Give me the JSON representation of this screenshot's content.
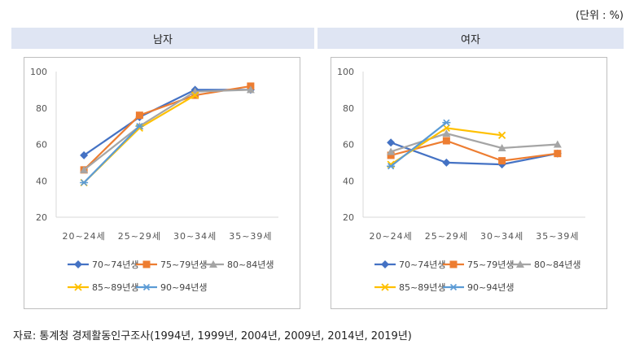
{
  "unit_label": "(단위 : %)",
  "headers": {
    "male": "남자",
    "female": "여자"
  },
  "source": "자료: 통계청 경제활동인구조사(1994년, 1999년, 2004년, 2009년, 2014년, 2019년)",
  "chart_data": [
    {
      "type": "line",
      "title": "남자",
      "categories": [
        "20~24세",
        "25~29세",
        "30~34세",
        "35~39세"
      ],
      "ylim": [
        20,
        100
      ],
      "yticks": [
        20,
        40,
        60,
        80,
        100
      ],
      "series": [
        {
          "name": "70~74년생",
          "color": "#4472c4",
          "marker": "diamond",
          "values": [
            54,
            75,
            90,
            90
          ]
        },
        {
          "name": "75~79년생",
          "color": "#ed7d31",
          "marker": "square",
          "values": [
            46,
            76,
            87,
            92
          ]
        },
        {
          "name": "80~84년생",
          "color": "#a5a5a5",
          "marker": "triangle",
          "values": [
            46,
            70,
            89,
            90
          ]
        },
        {
          "name": "85~89년생",
          "color": "#ffc000",
          "marker": "x",
          "values": [
            39,
            69,
            87,
            null
          ]
        },
        {
          "name": "90~94년생",
          "color": "#5b9bd5",
          "marker": "star",
          "values": [
            39,
            70,
            null,
            null
          ]
        }
      ]
    },
    {
      "type": "line",
      "title": "여자",
      "categories": [
        "20~24세",
        "25~29세",
        "30~34세",
        "35~39세"
      ],
      "ylim": [
        20,
        100
      ],
      "yticks": [
        20,
        40,
        60,
        80,
        100
      ],
      "series": [
        {
          "name": "70~74년생",
          "color": "#4472c4",
          "marker": "diamond",
          "values": [
            61,
            50,
            49,
            55
          ]
        },
        {
          "name": "75~79년생",
          "color": "#ed7d31",
          "marker": "square",
          "values": [
            54,
            62,
            51,
            55
          ]
        },
        {
          "name": "80~84년생",
          "color": "#a5a5a5",
          "marker": "triangle",
          "values": [
            56,
            66,
            58,
            60
          ]
        },
        {
          "name": "85~89년생",
          "color": "#ffc000",
          "marker": "x",
          "values": [
            49,
            69,
            65,
            null
          ]
        },
        {
          "name": "90~94년생",
          "color": "#5b9bd5",
          "marker": "star",
          "values": [
            48,
            72,
            null,
            null
          ]
        }
      ]
    }
  ]
}
